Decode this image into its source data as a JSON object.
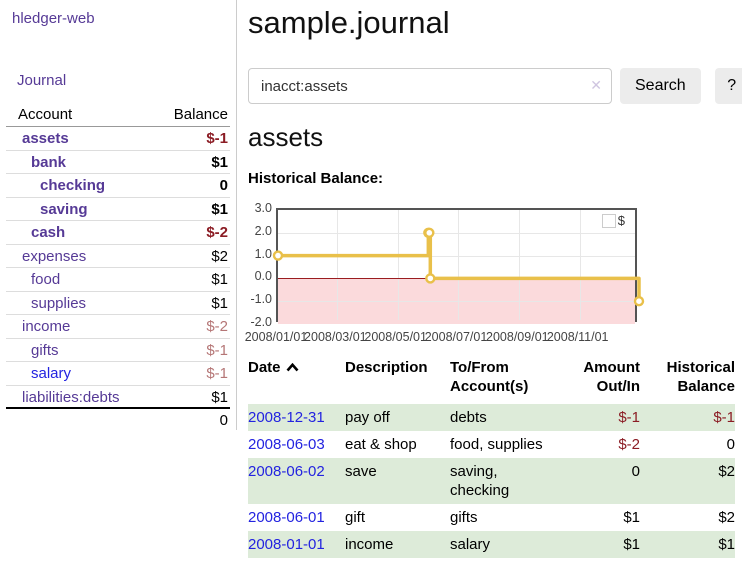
{
  "app": {
    "brand": "hledger-web",
    "nav": {
      "journal": "Journal"
    }
  },
  "sidebar": {
    "columns": {
      "account": "Account",
      "balance": "Balance"
    },
    "accounts": [
      {
        "name": "assets",
        "balance": "$-1",
        "depth": 1,
        "bold": true,
        "balance_negative": "strong"
      },
      {
        "name": "bank",
        "balance": "$1",
        "depth": 2,
        "bold": true,
        "balance_negative": "none"
      },
      {
        "name": "checking",
        "balance": "0",
        "depth": 3,
        "bold": true,
        "balance_negative": "none"
      },
      {
        "name": "saving",
        "balance": "$1",
        "depth": 3,
        "bold": true,
        "balance_negative": "none"
      },
      {
        "name": "cash",
        "balance": "$-2",
        "depth": 2,
        "bold": true,
        "balance_negative": "strong"
      },
      {
        "name": "expenses",
        "balance": "$2",
        "depth": 1,
        "bold": false,
        "balance_negative": "none"
      },
      {
        "name": "food",
        "balance": "$1",
        "depth": 2,
        "bold": false,
        "balance_negative": "none"
      },
      {
        "name": "supplies",
        "balance": "$1",
        "depth": 2,
        "bold": false,
        "balance_negative": "none"
      },
      {
        "name": "income",
        "balance": "$-2",
        "depth": 1,
        "bold": false,
        "balance_negative": "soft"
      },
      {
        "name": "gifts",
        "balance": "$-1",
        "depth": 2,
        "bold": false,
        "balance_negative": "soft"
      },
      {
        "name": "salary",
        "balance": "$-1",
        "depth": 2,
        "bold": false,
        "balance_negative": "soft",
        "link_color": "blue"
      },
      {
        "name": "liabilities:debts",
        "balance": "$1",
        "depth": 1,
        "bold": false,
        "balance_negative": "none"
      }
    ],
    "total": "0"
  },
  "main": {
    "title": "sample.journal",
    "search": {
      "value": "inacct:assets",
      "clear": "✕",
      "button": "Search",
      "help": "?"
    },
    "account_title": "assets",
    "chart_title": "Historical Balance:"
  },
  "chart_data": {
    "type": "line",
    "style": "step",
    "title": "Historical Balance:",
    "legend": {
      "label": "$",
      "position": "top-right"
    },
    "x_range": [
      "2008-01-01",
      "2008-12-31"
    ],
    "ylim": [
      -2,
      3
    ],
    "yticks": [
      "3.0",
      "2.0",
      "1.0",
      "0.0",
      "-1.0",
      "-2.0"
    ],
    "xticks": [
      "2008/01/01",
      "2008/03/01",
      "2008/05/01",
      "2008/07/01",
      "2008/09/01",
      "2008/11/01"
    ],
    "series": [
      {
        "name": "$",
        "color": "#e9c04a",
        "points": [
          {
            "date": "2008-01-01",
            "value": 1
          },
          {
            "date": "2008-06-01",
            "value": 2
          },
          {
            "date": "2008-06-02",
            "value": 2
          },
          {
            "date": "2008-06-03",
            "value": 0
          },
          {
            "date": "2008-12-31",
            "value": -1
          }
        ]
      }
    ],
    "grid": true,
    "colors": {
      "grid": "#e7e7e7",
      "zero_line": "#9a1c20",
      "negative_fill": "#fbdadc",
      "plot_border": "#545454",
      "marker_fill": "#ffffff"
    }
  },
  "register": {
    "headers": {
      "date": "Date",
      "description": "Description",
      "accounts": "To/From Account(s)",
      "amount": "Amount Out/In",
      "balance": "Historical Balance"
    },
    "sort": {
      "column": "date",
      "direction": "asc"
    },
    "rows": [
      {
        "date": "2008-12-31",
        "description": "pay off",
        "accounts": "debts",
        "amount": "$-1",
        "amount_negative": true,
        "balance": "$-1",
        "balance_negative": true,
        "shaded": true
      },
      {
        "date": "2008-06-03",
        "description": "eat & shop",
        "accounts": "food, supplies",
        "amount": "$-2",
        "amount_negative": true,
        "balance": "0",
        "balance_negative": false,
        "shaded": false
      },
      {
        "date": "2008-06-02",
        "description": "save",
        "accounts": "saving, checking",
        "amount": "0",
        "amount_negative": false,
        "balance": "$2",
        "balance_negative": false,
        "shaded": true
      },
      {
        "date": "2008-06-01",
        "description": "gift",
        "accounts": "gifts",
        "amount": "$1",
        "amount_negative": false,
        "balance": "$2",
        "balance_negative": false,
        "shaded": false
      },
      {
        "date": "2008-01-01",
        "description": "income",
        "accounts": "salary",
        "amount": "$1",
        "amount_negative": false,
        "balance": "$1",
        "balance_negative": false,
        "shaded": true
      }
    ]
  }
}
